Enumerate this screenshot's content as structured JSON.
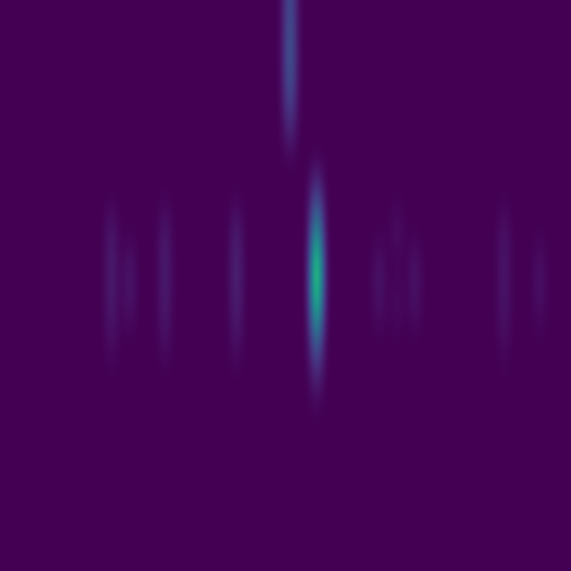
{
  "chart_data": {
    "type": "heatmap",
    "color": "viridis",
    "tick_labels": false,
    "grid": false,
    "color_range": [
      0,
      1
    ],
    "cells": [
      [
        0,
        0,
        0,
        0,
        0,
        0,
        0,
        0,
        0,
        0,
        0,
        0,
        0,
        0,
        0,
        0,
        0,
        0,
        0,
        0,
        0,
        0,
        0,
        0,
        0,
        0,
        0,
        0,
        0,
        0,
        0,
        0,
        0.3,
        0,
        0,
        0,
        0,
        0,
        0,
        0,
        0,
        0,
        0,
        0,
        0,
        0,
        0,
        0,
        0,
        0,
        0,
        0,
        0,
        0,
        0,
        0,
        0,
        0,
        0,
        0,
        0,
        0,
        0,
        0
      ],
      [
        0,
        0,
        0,
        0,
        0,
        0,
        0,
        0,
        0,
        0,
        0,
        0,
        0,
        0,
        0,
        0,
        0,
        0,
        0,
        0,
        0,
        0,
        0,
        0,
        0,
        0,
        0,
        0,
        0,
        0,
        0,
        0,
        0.35,
        0,
        0,
        0,
        0,
        0,
        0,
        0,
        0,
        0,
        0,
        0,
        0,
        0,
        0,
        0,
        0,
        0,
        0,
        0,
        0,
        0,
        0,
        0,
        0,
        0,
        0,
        0,
        0,
        0,
        0,
        0
      ],
      [
        0,
        0,
        0,
        0,
        0,
        0,
        0,
        0,
        0,
        0,
        0,
        0,
        0,
        0,
        0,
        0,
        0,
        0,
        0,
        0,
        0,
        0,
        0,
        0,
        0,
        0,
        0,
        0,
        0,
        0,
        0,
        0,
        0.3,
        0,
        0,
        0,
        0,
        0,
        0,
        0,
        0,
        0,
        0,
        0,
        0,
        0,
        0,
        0,
        0,
        0,
        0,
        0,
        0,
        0,
        0,
        0,
        0,
        0,
        0,
        0,
        0,
        0,
        0,
        0
      ],
      [
        0,
        0,
        0,
        0,
        0,
        0,
        0,
        0,
        0,
        0,
        0,
        0,
        0,
        0,
        0,
        0,
        0,
        0,
        0,
        0,
        0,
        0,
        0,
        0,
        0,
        0,
        0,
        0,
        0,
        0,
        0,
        0,
        0.15,
        0,
        0,
        0,
        0,
        0,
        0,
        0,
        0,
        0,
        0,
        0,
        0,
        0,
        0,
        0,
        0,
        0,
        0,
        0,
        0,
        0,
        0,
        0,
        0,
        0,
        0,
        0,
        0,
        0,
        0,
        0
      ],
      [
        0,
        0,
        0,
        0,
        0,
        0,
        0,
        0,
        0,
        0,
        0,
        0,
        0,
        0,
        0,
        0,
        0,
        0,
        0,
        0,
        0,
        0,
        0,
        0,
        0,
        0,
        0,
        0,
        0,
        0,
        0,
        0,
        0,
        0,
        0,
        0,
        0,
        0,
        0,
        0,
        0,
        0,
        0,
        0,
        0,
        0,
        0,
        0,
        0,
        0,
        0,
        0,
        0,
        0,
        0,
        0,
        0,
        0,
        0,
        0,
        0,
        0,
        0,
        0
      ],
      [
        0,
        0,
        0,
        0,
        0,
        0,
        0,
        0,
        0,
        0,
        0,
        0,
        0,
        0,
        0,
        0,
        0,
        0,
        0,
        0,
        0,
        0,
        0,
        0,
        0,
        0,
        0,
        0,
        0,
        0,
        0,
        0,
        0,
        0,
        0,
        0.25,
        0,
        0,
        0,
        0,
        0,
        0,
        0,
        0,
        0,
        0,
        0,
        0,
        0,
        0,
        0,
        0,
        0,
        0,
        0,
        0,
        0,
        0,
        0,
        0,
        0,
        0,
        0,
        0
      ],
      [
        0,
        0,
        0,
        0,
        0,
        0,
        0,
        0,
        0,
        0,
        0,
        0,
        0.08,
        0,
        0,
        0,
        0,
        0,
        0.08,
        0,
        0,
        0,
        0,
        0,
        0,
        0,
        0.1,
        0,
        0,
        0,
        0,
        0,
        0,
        0,
        0,
        0.6,
        0,
        0,
        0,
        0,
        0,
        0,
        0,
        0,
        0.06,
        0,
        0,
        0,
        0,
        0,
        0,
        0,
        0,
        0,
        0,
        0,
        0.06,
        0,
        0,
        0,
        0,
        0,
        0,
        0
      ],
      [
        0,
        0,
        0,
        0,
        0,
        0,
        0,
        0,
        0,
        0,
        0,
        0,
        0.1,
        0,
        0.08,
        0,
        0,
        0,
        0.1,
        0,
        0,
        0,
        0,
        0,
        0,
        0,
        0.12,
        0,
        0,
        0,
        0,
        0,
        0,
        0,
        0,
        1.0,
        0,
        0,
        0,
        0,
        0,
        0,
        0.07,
        0,
        0,
        0,
        0.07,
        0,
        0,
        0,
        0,
        0,
        0,
        0,
        0,
        0,
        0.08,
        0,
        0,
        0,
        0.06,
        0,
        0,
        0
      ],
      [
        0,
        0,
        0,
        0,
        0,
        0,
        0,
        0,
        0,
        0,
        0,
        0,
        0.09,
        0,
        0.07,
        0,
        0,
        0,
        0.09,
        0,
        0,
        0,
        0,
        0,
        0,
        0,
        0.11,
        0,
        0,
        0,
        0,
        0,
        0,
        0,
        0,
        0.85,
        0,
        0,
        0,
        0,
        0,
        0,
        0.06,
        0,
        0.05,
        0,
        0.06,
        0,
        0,
        0,
        0,
        0,
        0,
        0,
        0,
        0,
        0.07,
        0,
        0,
        0,
        0.05,
        0,
        0,
        0
      ],
      [
        0,
        0,
        0,
        0,
        0,
        0,
        0,
        0,
        0,
        0,
        0,
        0,
        0.05,
        0,
        0,
        0,
        0,
        0,
        0.05,
        0,
        0,
        0,
        0,
        0,
        0,
        0,
        0.06,
        0,
        0,
        0,
        0,
        0,
        0,
        0,
        0,
        0.4,
        0,
        0,
        0,
        0,
        0,
        0,
        0,
        0,
        0,
        0,
        0,
        0,
        0,
        0,
        0,
        0,
        0,
        0,
        0,
        0,
        0.04,
        0,
        0,
        0,
        0,
        0,
        0,
        0
      ],
      [
        0,
        0,
        0,
        0,
        0,
        0,
        0,
        0,
        0,
        0,
        0,
        0,
        0,
        0,
        0,
        0,
        0,
        0,
        0,
        0,
        0,
        0,
        0,
        0,
        0,
        0,
        0,
        0,
        0,
        0,
        0,
        0,
        0,
        0,
        0,
        0.12,
        0,
        0,
        0,
        0,
        0,
        0,
        0,
        0,
        0,
        0,
        0,
        0,
        0,
        0,
        0,
        0,
        0,
        0,
        0,
        0,
        0,
        0,
        0,
        0,
        0,
        0,
        0,
        0
      ],
      [
        0,
        0,
        0,
        0,
        0,
        0,
        0,
        0,
        0,
        0,
        0,
        0,
        0,
        0,
        0,
        0,
        0,
        0,
        0,
        0,
        0,
        0,
        0,
        0,
        0,
        0,
        0,
        0,
        0,
        0,
        0,
        0,
        0,
        0,
        0,
        0,
        0,
        0,
        0,
        0,
        0,
        0,
        0,
        0,
        0,
        0,
        0,
        0,
        0,
        0,
        0,
        0,
        0,
        0,
        0,
        0,
        0,
        0,
        0,
        0,
        0,
        0,
        0,
        0
      ],
      [
        0,
        0,
        0,
        0,
        0,
        0,
        0,
        0,
        0,
        0,
        0,
        0,
        0,
        0,
        0,
        0,
        0,
        0,
        0,
        0,
        0,
        0,
        0,
        0,
        0,
        0,
        0,
        0,
        0,
        0,
        0,
        0,
        0,
        0,
        0,
        0,
        0,
        0,
        0,
        0,
        0,
        0,
        0,
        0,
        0,
        0,
        0,
        0,
        0,
        0,
        0,
        0,
        0,
        0,
        0,
        0,
        0,
        0,
        0,
        0,
        0,
        0,
        0,
        0
      ],
      [
        0,
        0,
        0,
        0,
        0,
        0,
        0,
        0,
        0,
        0,
        0,
        0,
        0,
        0,
        0,
        0,
        0,
        0,
        0,
        0,
        0,
        0,
        0,
        0,
        0,
        0,
        0,
        0,
        0,
        0,
        0,
        0,
        0,
        0,
        0,
        0,
        0,
        0,
        0,
        0,
        0,
        0,
        0,
        0,
        0,
        0,
        0,
        0,
        0,
        0,
        0,
        0,
        0,
        0,
        0,
        0,
        0,
        0,
        0,
        0,
        0,
        0,
        0,
        0
      ],
      [
        0,
        0,
        0,
        0,
        0,
        0,
        0,
        0,
        0,
        0,
        0,
        0,
        0,
        0,
        0,
        0,
        0,
        0,
        0,
        0,
        0,
        0,
        0,
        0,
        0,
        0,
        0,
        0,
        0,
        0,
        0,
        0,
        0,
        0,
        0,
        0,
        0,
        0,
        0,
        0,
        0,
        0,
        0,
        0,
        0,
        0,
        0,
        0,
        0,
        0,
        0,
        0,
        0,
        0,
        0,
        0,
        0,
        0,
        0,
        0,
        0,
        0,
        0,
        0
      ],
      [
        0,
        0,
        0,
        0,
        0,
        0,
        0,
        0,
        0,
        0,
        0,
        0,
        0,
        0,
        0,
        0,
        0,
        0,
        0,
        0,
        0,
        0,
        0,
        0,
        0,
        0,
        0,
        0,
        0,
        0,
        0,
        0,
        0,
        0,
        0,
        0,
        0,
        0,
        0,
        0,
        0,
        0,
        0,
        0,
        0,
        0,
        0,
        0,
        0,
        0,
        0,
        0,
        0,
        0,
        0,
        0,
        0,
        0,
        0,
        0,
        0,
        0,
        0,
        0
      ]
    ]
  }
}
